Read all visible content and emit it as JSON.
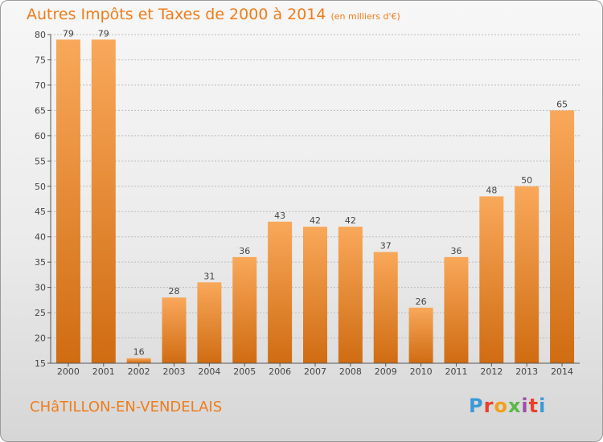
{
  "header": {
    "title": "Autres Impôts et Taxes de 2000 à 2014",
    "subtitle": "(en milliers d'€)"
  },
  "footer": {
    "commune": "CHâTILLON-EN-VENDELAIS"
  },
  "logo": {
    "letters": [
      "P",
      "r",
      "o",
      "x",
      "i",
      "t",
      "i"
    ],
    "colors": [
      "#3a9ad9",
      "#e8402a",
      "#f2a01b",
      "#58b947",
      "#9c4fa6",
      "#e8402a",
      "#3a9ad9"
    ]
  },
  "colors": {
    "bar_light": "#f9a85a",
    "bar_dark": "#d06c12",
    "title": "#ef7d1a",
    "grid": "#bcbcbc"
  },
  "chart_data": {
    "type": "bar",
    "title": "Autres Impôts et Taxes de 2000 à 2014",
    "subtitle": "(en milliers d'€)",
    "xlabel": "",
    "ylabel": "",
    "categories": [
      "2000",
      "2001",
      "2002",
      "2003",
      "2004",
      "2005",
      "2006",
      "2007",
      "2008",
      "2009",
      "2010",
      "2011",
      "2012",
      "2013",
      "2014"
    ],
    "values": [
      79,
      79,
      16,
      28,
      31,
      36,
      43,
      42,
      42,
      37,
      26,
      36,
      48,
      50,
      65
    ],
    "data_labels": [
      "79",
      "79",
      "16",
      "28",
      "31",
      "36",
      "43",
      "42",
      "42",
      "37",
      "26",
      "36",
      "48",
      "50",
      "65"
    ],
    "yticks": [
      15,
      20,
      25,
      30,
      35,
      40,
      45,
      50,
      55,
      60,
      65,
      70,
      75,
      80
    ],
    "ylim": [
      15,
      80
    ],
    "grid": true,
    "legend": "none"
  }
}
